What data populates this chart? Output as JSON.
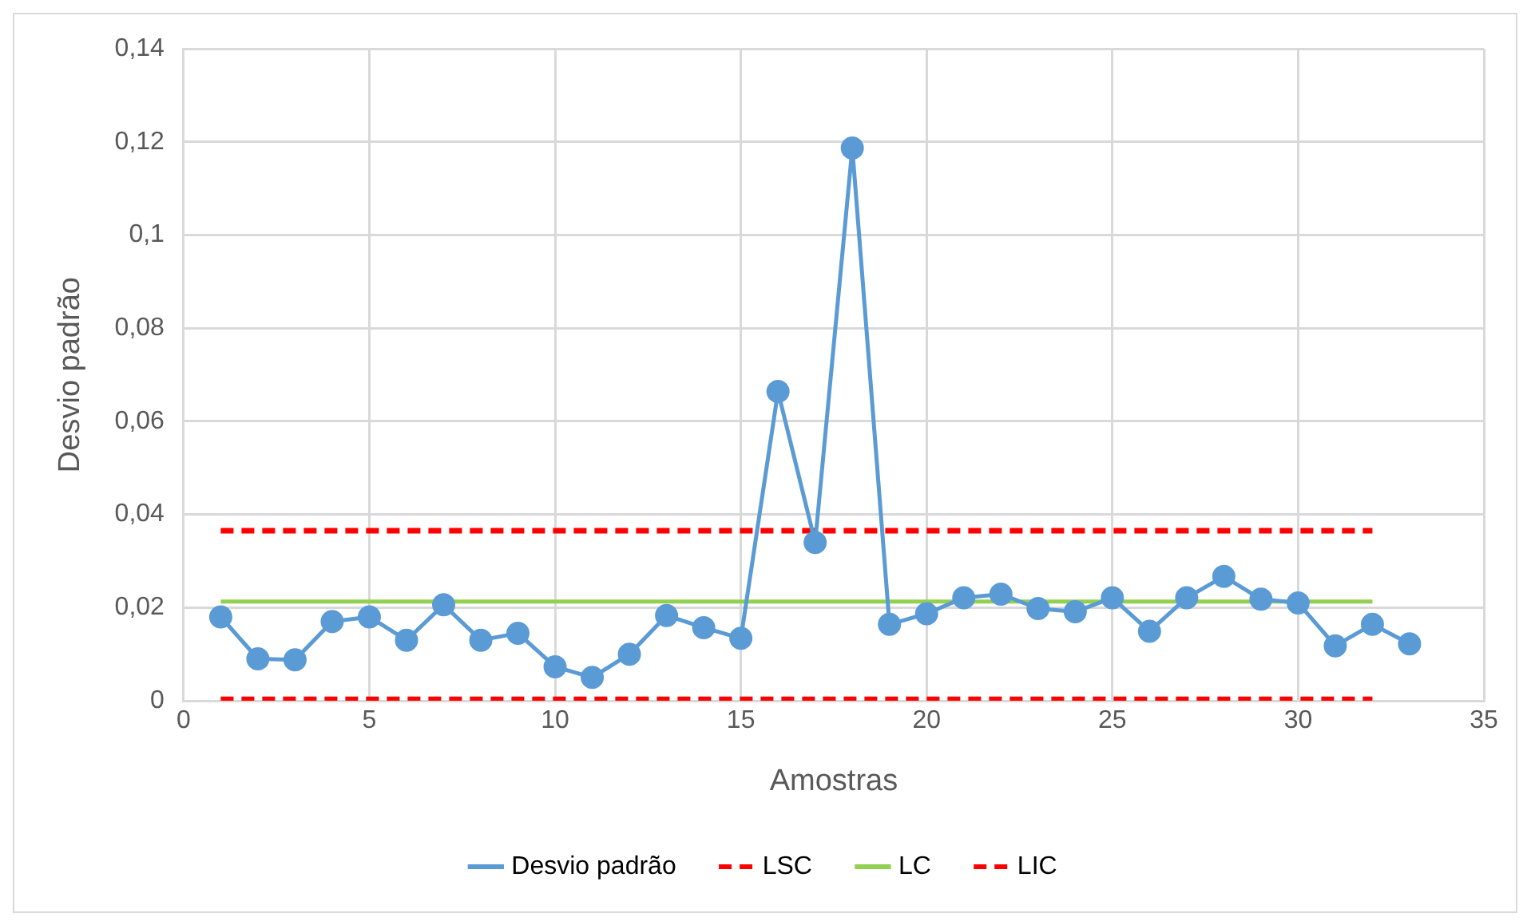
{
  "chart_data": {
    "type": "line",
    "xlabel": "Amostras",
    "ylabel": "Desvio padrão",
    "xlim": [
      0,
      35
    ],
    "xticks": [
      0,
      5,
      10,
      15,
      20,
      25,
      30,
      35
    ],
    "ylim": [
      0,
      0.14
    ],
    "yticks": [
      {
        "value": 0,
        "label": "0"
      },
      {
        "value": 0.02,
        "label": "0,02"
      },
      {
        "value": 0.04,
        "label": "0,04"
      },
      {
        "value": 0.06,
        "label": "0,06"
      },
      {
        "value": 0.08,
        "label": "0,08"
      },
      {
        "value": 0.1,
        "label": "0,1"
      },
      {
        "value": 0.12,
        "label": "0,12"
      },
      {
        "value": 0.14,
        "label": "0,14"
      }
    ],
    "grid": true,
    "legend": "bottom",
    "series": [
      {
        "name": "Desvio padrão",
        "color": "#5b9bd5",
        "marker": "circle",
        "line_style": "solid",
        "x": [
          1,
          2,
          3,
          4,
          5,
          6,
          7,
          8,
          9,
          10,
          11,
          12,
          13,
          14,
          15,
          16,
          17,
          18,
          19,
          20,
          21,
          22,
          23,
          24,
          25,
          26,
          27,
          28,
          29,
          30,
          31,
          32,
          33
        ],
        "values": [
          0.018,
          0.009,
          0.0088,
          0.017,
          0.018,
          0.013,
          0.0206,
          0.013,
          0.0145,
          0.0073,
          0.005,
          0.01,
          0.0183,
          0.0157,
          0.0134,
          0.0664,
          0.034,
          0.1187,
          0.0164,
          0.0187,
          0.0221,
          0.0229,
          0.0198,
          0.0191,
          0.0221,
          0.0149,
          0.0221,
          0.0267,
          0.0218,
          0.021,
          0.0118,
          0.0164,
          0.0122
        ]
      },
      {
        "name": "LSC",
        "color": "#ff0000",
        "marker": "none",
        "line_style": "dashed",
        "x": [
          1,
          32
        ],
        "values": [
          0.0365,
          0.0365
        ]
      },
      {
        "name": "LC",
        "color": "#92d050",
        "marker": "none",
        "line_style": "solid",
        "x": [
          1,
          32
        ],
        "values": [
          0.0213,
          0.0213
        ]
      },
      {
        "name": "LIC",
        "color": "#ff0000",
        "marker": "none",
        "line_style": "dashed",
        "x": [
          1,
          32
        ],
        "values": [
          0.0003,
          0.0003
        ]
      }
    ]
  }
}
